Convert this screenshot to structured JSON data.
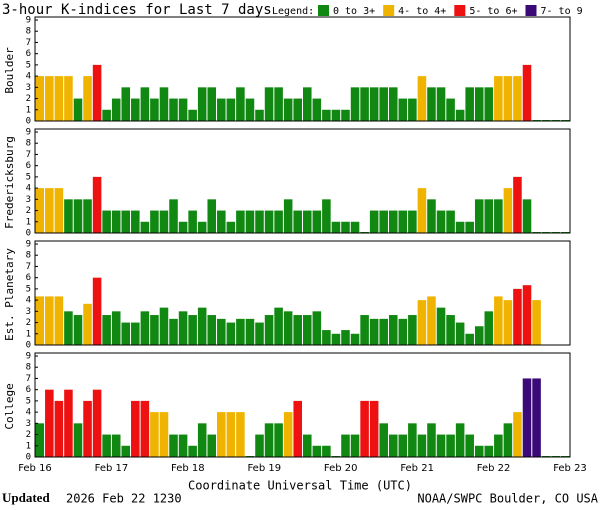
{
  "header": {
    "title": "3-hour K-indices for Last 7 days",
    "legend_label": "Legend:",
    "legend": [
      {
        "label": "0 to 3+",
        "color": "#118811"
      },
      {
        "label": "4- to 4+",
        "color": "#f0b400"
      },
      {
        "label": "5- to 6+",
        "color": "#ee1111"
      },
      {
        "label": "7- to 9",
        "color": "#3a0a78"
      }
    ]
  },
  "chart_data": [
    {
      "type": "bar",
      "ylabel": "Boulder",
      "ylim": [
        0,
        9
      ],
      "yticks": [
        0,
        1,
        2,
        3,
        4,
        5,
        6,
        7,
        8,
        9
      ],
      "values": [
        4,
        4,
        4,
        4,
        2,
        4,
        5,
        1,
        2,
        3,
        2,
        3,
        2,
        3,
        2,
        2,
        1,
        3,
        3,
        2,
        2,
        3,
        2,
        1,
        3,
        3,
        2,
        2,
        3,
        2,
        1,
        1,
        1,
        3,
        3,
        3,
        3,
        3,
        2,
        2,
        4,
        3,
        3,
        2,
        1,
        3,
        3,
        3,
        4,
        4,
        4,
        5,
        0,
        0,
        0,
        0
      ]
    },
    {
      "type": "bar",
      "ylabel": "Fredericksburg",
      "ylim": [
        0,
        9
      ],
      "yticks": [
        0,
        1,
        2,
        3,
        4,
        5,
        6,
        7,
        8,
        9
      ],
      "values": [
        4,
        4,
        4,
        3,
        3,
        3,
        5,
        2,
        2,
        2,
        2,
        1,
        2,
        2,
        3,
        1,
        2,
        1,
        3,
        2,
        1,
        2,
        2,
        2,
        2,
        2,
        3,
        2,
        2,
        2,
        3,
        1,
        1,
        1,
        0,
        2,
        2,
        2,
        2,
        2,
        4,
        3,
        2,
        2,
        1,
        1,
        3,
        3,
        3,
        4,
        5,
        3,
        0,
        0,
        0,
        0
      ]
    },
    {
      "type": "bar",
      "ylabel": "Est. Planetary",
      "ylim": [
        0,
        9
      ],
      "yticks": [
        0,
        1,
        2,
        3,
        4,
        5,
        6,
        7,
        8,
        9
      ],
      "values": [
        4.33,
        4.33,
        4.33,
        3,
        2.67,
        3.67,
        6,
        2.67,
        3,
        2,
        2,
        3,
        2.67,
        3.33,
        2.33,
        3,
        2.67,
        3.33,
        2.67,
        2.33,
        2,
        2.33,
        2.33,
        2,
        2.67,
        3.33,
        3,
        2.67,
        2.67,
        3,
        1.33,
        1,
        1.33,
        1,
        2.67,
        2.33,
        2.33,
        2.67,
        2.33,
        2.67,
        4,
        4.33,
        3.33,
        2.67,
        2,
        1,
        1.67,
        3,
        4.33,
        4,
        5,
        5.33,
        4,
        null,
        null,
        null
      ]
    },
    {
      "type": "bar",
      "ylabel": "College",
      "ylim": [
        0,
        9
      ],
      "yticks": [
        0,
        1,
        2,
        3,
        4,
        5,
        6,
        7,
        8,
        9
      ],
      "values": [
        3,
        6,
        5,
        6,
        3,
        5,
        6,
        2,
        2,
        1,
        5,
        5,
        4,
        4,
        2,
        2,
        1,
        3,
        2,
        4,
        4,
        4,
        0,
        2,
        3,
        3,
        4,
        5,
        2,
        1,
        1,
        0,
        2,
        2,
        5,
        5,
        3,
        2,
        2,
        3,
        2,
        3,
        2,
        2,
        3,
        2,
        1,
        1,
        2,
        3,
        4,
        7,
        7,
        0,
        0,
        0
      ]
    }
  ],
  "x_axis": {
    "label": "Coordinate Universal Time (UTC)",
    "ticks": [
      "Feb 16",
      "Feb 17",
      "Feb 18",
      "Feb 19",
      "Feb 20",
      "Feb 21",
      "Feb 22",
      "Feb 23"
    ]
  },
  "footer": {
    "updated_label": "Updated",
    "updated": "2026 Feb 22 1230",
    "credit": "NOAA/SWPC Boulder, CO USA"
  }
}
